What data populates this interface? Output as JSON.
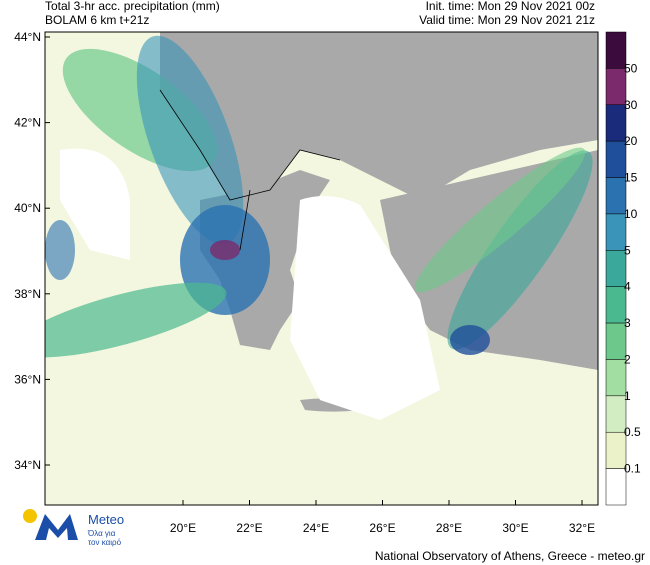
{
  "header": {
    "title_left_1": "Total 3-hr acc. precipitation (mm)",
    "title_left_2": "BOLAM 6 km t+21z",
    "title_right_1": "Init. time: Mon 29 Nov 2021 00z",
    "title_right_2": "Valid time: Mon 29 Nov 2021 21z"
  },
  "map": {
    "lat_labels": [
      "44°N",
      "42°N",
      "40°N",
      "38°N",
      "36°N",
      "34°N"
    ],
    "lon_labels": [
      "20°E",
      "22°E",
      "24°E",
      "26°E",
      "28°E",
      "30°E",
      "32°E"
    ]
  },
  "colorbar": {
    "colors": [
      "#3b0b3e",
      "#7b2a6b",
      "#1b2b7c",
      "#1f4f9b",
      "#2b72b1",
      "#3a94b9",
      "#3aa89b",
      "#4bb98f",
      "#6cc98b",
      "#a2dda2",
      "#d2edc2",
      "#ebf2c9",
      "#ffffff"
    ],
    "labels": [
      "50",
      "30",
      "20",
      "15",
      "10",
      "5",
      "4",
      "3",
      "2",
      "1",
      "0.5",
      "0.1"
    ]
  },
  "logo": {
    "name": "Meteo",
    "tagline_1": "Όλα για",
    "tagline_2": "τον καιρό"
  },
  "footer": "National Observatory of Athens, Greece - meteo.gr"
}
